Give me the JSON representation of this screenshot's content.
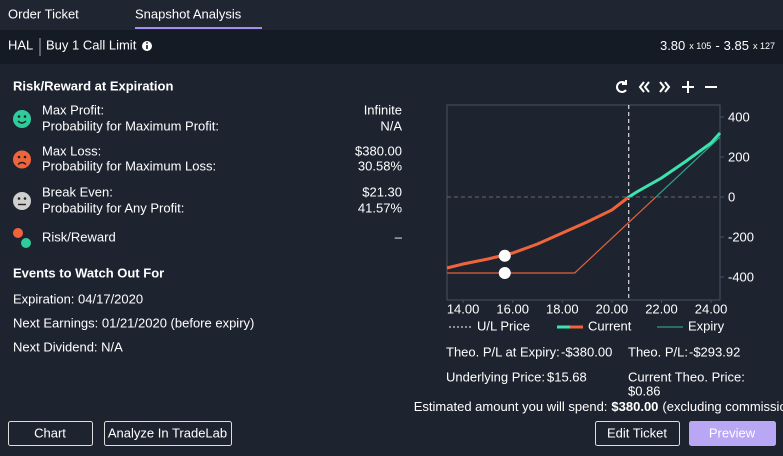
{
  "tabs": {
    "items": [
      "Order Ticket",
      "Snapshot Analysis"
    ],
    "active": 1
  },
  "order": {
    "symbol": "HAL",
    "description": "Buy 1 Call Limit",
    "bid": "3.80",
    "bid_size": "x 105",
    "separator": "-",
    "ask": "3.85",
    "ask_size": "x 127"
  },
  "risk": {
    "title": "Risk/Reward at Expiration",
    "rows": [
      {
        "icon": "happy",
        "lines": [
          {
            "label": "Max Profit:",
            "value": "Infinite"
          },
          {
            "label": "Probability for Maximum Profit:",
            "value": "N/A"
          }
        ]
      },
      {
        "icon": "sad",
        "lines": [
          {
            "label": "Max Loss:",
            "value": "$380.00"
          },
          {
            "label": "Probability for Maximum Loss:",
            "value": "30.58%"
          }
        ]
      },
      {
        "icon": "neutral",
        "lines": [
          {
            "label": "Break Even:",
            "value": "$21.30"
          },
          {
            "label": "Probability for Any Profit:",
            "value": "41.57%"
          }
        ]
      },
      {
        "icon": "ratio",
        "lines": [
          {
            "label": "Risk/Reward",
            "value": "–"
          }
        ]
      }
    ]
  },
  "events": {
    "title": "Events to Watch Out For",
    "items": [
      "Expiration: 04/17/2020",
      "Next Earnings: 01/21/2020 (before expiry)",
      "Next Dividend: N/A"
    ]
  },
  "chart": {
    "type": "line",
    "xlim": [
      13.35,
      24.36
    ],
    "ylim": [
      -515,
      460
    ],
    "xticks": [
      {
        "value": 14,
        "label": "14.00"
      },
      {
        "value": 16,
        "label": "16.00"
      },
      {
        "value": 18,
        "label": "18.00"
      },
      {
        "value": 20,
        "label": "20.00"
      },
      {
        "value": 22,
        "label": "22.00"
      },
      {
        "value": 24,
        "label": "24.00"
      }
    ],
    "yticks": [
      400,
      200,
      0,
      -200,
      -400
    ],
    "reference_x": 20.68,
    "reference_name": "U/L Price",
    "series": [
      {
        "name": "Current",
        "colors": {
          "profit": "#3de3ae",
          "loss": "#f0643c"
        },
        "width": 3,
        "x": [
          13.35,
          14,
          15,
          16,
          17,
          18,
          19,
          20,
          20.68,
          21,
          22,
          23,
          24,
          24.36
        ],
        "y": [
          -355,
          -335,
          -310,
          -280,
          -235,
          -180,
          -125,
          -65,
          0,
          25,
          95,
          180,
          270,
          320
        ]
      },
      {
        "name": "Expiry",
        "colors": {
          "profit": "#2f9f8a",
          "loss": "#e0603a"
        },
        "width": 1.2,
        "x": [
          13.35,
          18.5,
          24.36
        ],
        "y": [
          -380,
          -380,
          300
        ]
      }
    ],
    "markers": [
      {
        "x": 15.68,
        "y": -293.92
      },
      {
        "x": 15.68,
        "y": -380
      }
    ]
  },
  "summary": {
    "expiry_pl": {
      "label": "Theo. P/L at Expiry:",
      "value": "-$380.00"
    },
    "theo_pl": {
      "label": "Theo. P/L:",
      "value": "-$293.92"
    },
    "underlying": {
      "label": "Underlying Price:",
      "value": "$15.68"
    },
    "theo_price": {
      "label": "Current Theo. Price:",
      "value": "$0.86"
    },
    "estimate": {
      "label": "Estimated amount you will spend:",
      "value": "$380.00",
      "note": "(excluding commission)"
    }
  },
  "buttons": [
    "Chart",
    "Analyze In TradeLab",
    "Edit Ticket",
    "Preview"
  ]
}
